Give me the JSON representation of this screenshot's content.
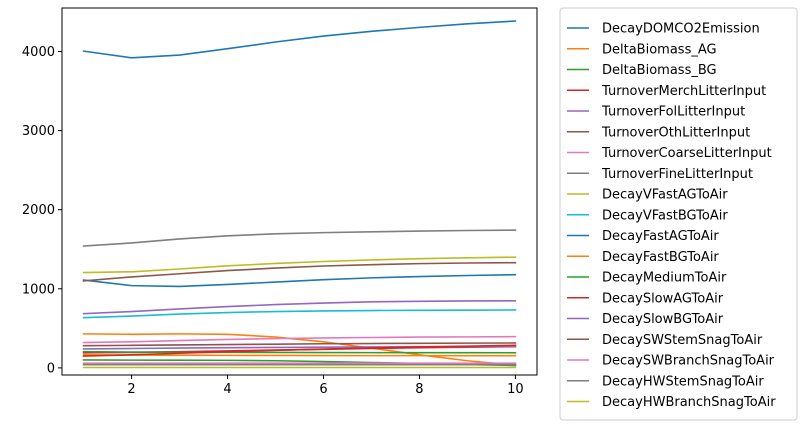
{
  "chart_data": {
    "type": "line",
    "title": "",
    "xlabel": "",
    "ylabel": "",
    "x": [
      1,
      2,
      3,
      4,
      5,
      6,
      7,
      8,
      9,
      10
    ],
    "xlim": [
      0.55,
      10.45
    ],
    "ylim": [
      -90,
      4550
    ],
    "xticks": [
      2,
      4,
      6,
      8,
      10
    ],
    "yticks": [
      0,
      1000,
      2000,
      3000,
      4000
    ],
    "grid": false,
    "legend_position": "outside-right",
    "series": [
      {
        "name": "DecayDOMCO2Emission",
        "color": "#1f77b4",
        "values": [
          4005,
          3920,
          3955,
          4035,
          4120,
          4195,
          4255,
          4305,
          4350,
          4385
        ]
      },
      {
        "name": "DeltaBiomass_AG",
        "color": "#ff7f0e",
        "values": [
          430,
          425,
          430,
          425,
          390,
          330,
          250,
          165,
          90,
          35
        ]
      },
      {
        "name": "DeltaBiomass_BG",
        "color": "#2ca02c",
        "values": [
          100,
          98,
          97,
          95,
          90,
          80,
          68,
          55,
          42,
          30
        ]
      },
      {
        "name": "TurnoverMerchLitterInput",
        "color": "#d62728",
        "values": [
          190,
          195,
          205,
          215,
          225,
          235,
          245,
          255,
          262,
          268
        ]
      },
      {
        "name": "TurnoverFolLitterInput",
        "color": "#9467bd",
        "values": [
          240,
          245,
          250,
          255,
          258,
          262,
          265,
          268,
          270,
          272
        ]
      },
      {
        "name": "TurnoverOthLitterInput",
        "color": "#8c564b",
        "values": [
          280,
          285,
          290,
          295,
          300,
          305,
          308,
          311,
          313,
          315
        ]
      },
      {
        "name": "TurnoverCoarseLitterInput",
        "color": "#e377c2",
        "values": [
          320,
          330,
          345,
          360,
          370,
          378,
          384,
          389,
          392,
          395
        ]
      },
      {
        "name": "TurnoverFineLitterInput",
        "color": "#7f7f7f",
        "values": [
          1540,
          1580,
          1630,
          1670,
          1695,
          1710,
          1720,
          1730,
          1737,
          1742
        ]
      },
      {
        "name": "DecayVFastAGToAir",
        "color": "#bcbd22",
        "values": [
          1205,
          1215,
          1250,
          1290,
          1320,
          1345,
          1365,
          1380,
          1392,
          1400
        ]
      },
      {
        "name": "DecayVFastBGToAir",
        "color": "#17becf",
        "values": [
          635,
          655,
          680,
          700,
          712,
          720,
          725,
          728,
          730,
          732
        ]
      },
      {
        "name": "DecayFastAGToAir",
        "color": "#1f77b4",
        "values": [
          1110,
          1040,
          1030,
          1055,
          1085,
          1115,
          1138,
          1155,
          1168,
          1178
        ]
      },
      {
        "name": "DecayFastBGToAir",
        "color": "#ff7f0e",
        "values": [
          165,
          162,
          160,
          158,
          157,
          156,
          155,
          155,
          154,
          154
        ]
      },
      {
        "name": "DecayMediumToAir",
        "color": "#2ca02c",
        "values": [
          205,
          200,
          198,
          196,
          195,
          194,
          193,
          192,
          192,
          191
        ]
      },
      {
        "name": "DecaySlowAGToAir",
        "color": "#d62728",
        "values": [
          150,
          165,
          185,
          205,
          222,
          238,
          252,
          265,
          275,
          285
        ]
      },
      {
        "name": "DecaySlowBGToAir",
        "color": "#9467bd",
        "values": [
          685,
          712,
          745,
          775,
          800,
          820,
          835,
          842,
          846,
          848
        ]
      },
      {
        "name": "DecaySWStemSnagToAir",
        "color": "#8c564b",
        "values": [
          1100,
          1150,
          1190,
          1230,
          1262,
          1288,
          1305,
          1318,
          1326,
          1330
        ]
      },
      {
        "name": "DecaySWBranchSnagToAir",
        "color": "#e377c2",
        "values": [
          60,
          60,
          60,
          60,
          60,
          60,
          60,
          60,
          60,
          60
        ]
      },
      {
        "name": "DecayHWStemSnagToAir",
        "color": "#7f7f7f",
        "values": [
          40,
          40,
          40,
          40,
          40,
          40,
          40,
          40,
          40,
          40
        ]
      },
      {
        "name": "DecayHWBranchSnagToAir",
        "color": "#bcbd22",
        "values": [
          5,
          5,
          5,
          5,
          5,
          5,
          5,
          5,
          5,
          5
        ]
      }
    ]
  }
}
